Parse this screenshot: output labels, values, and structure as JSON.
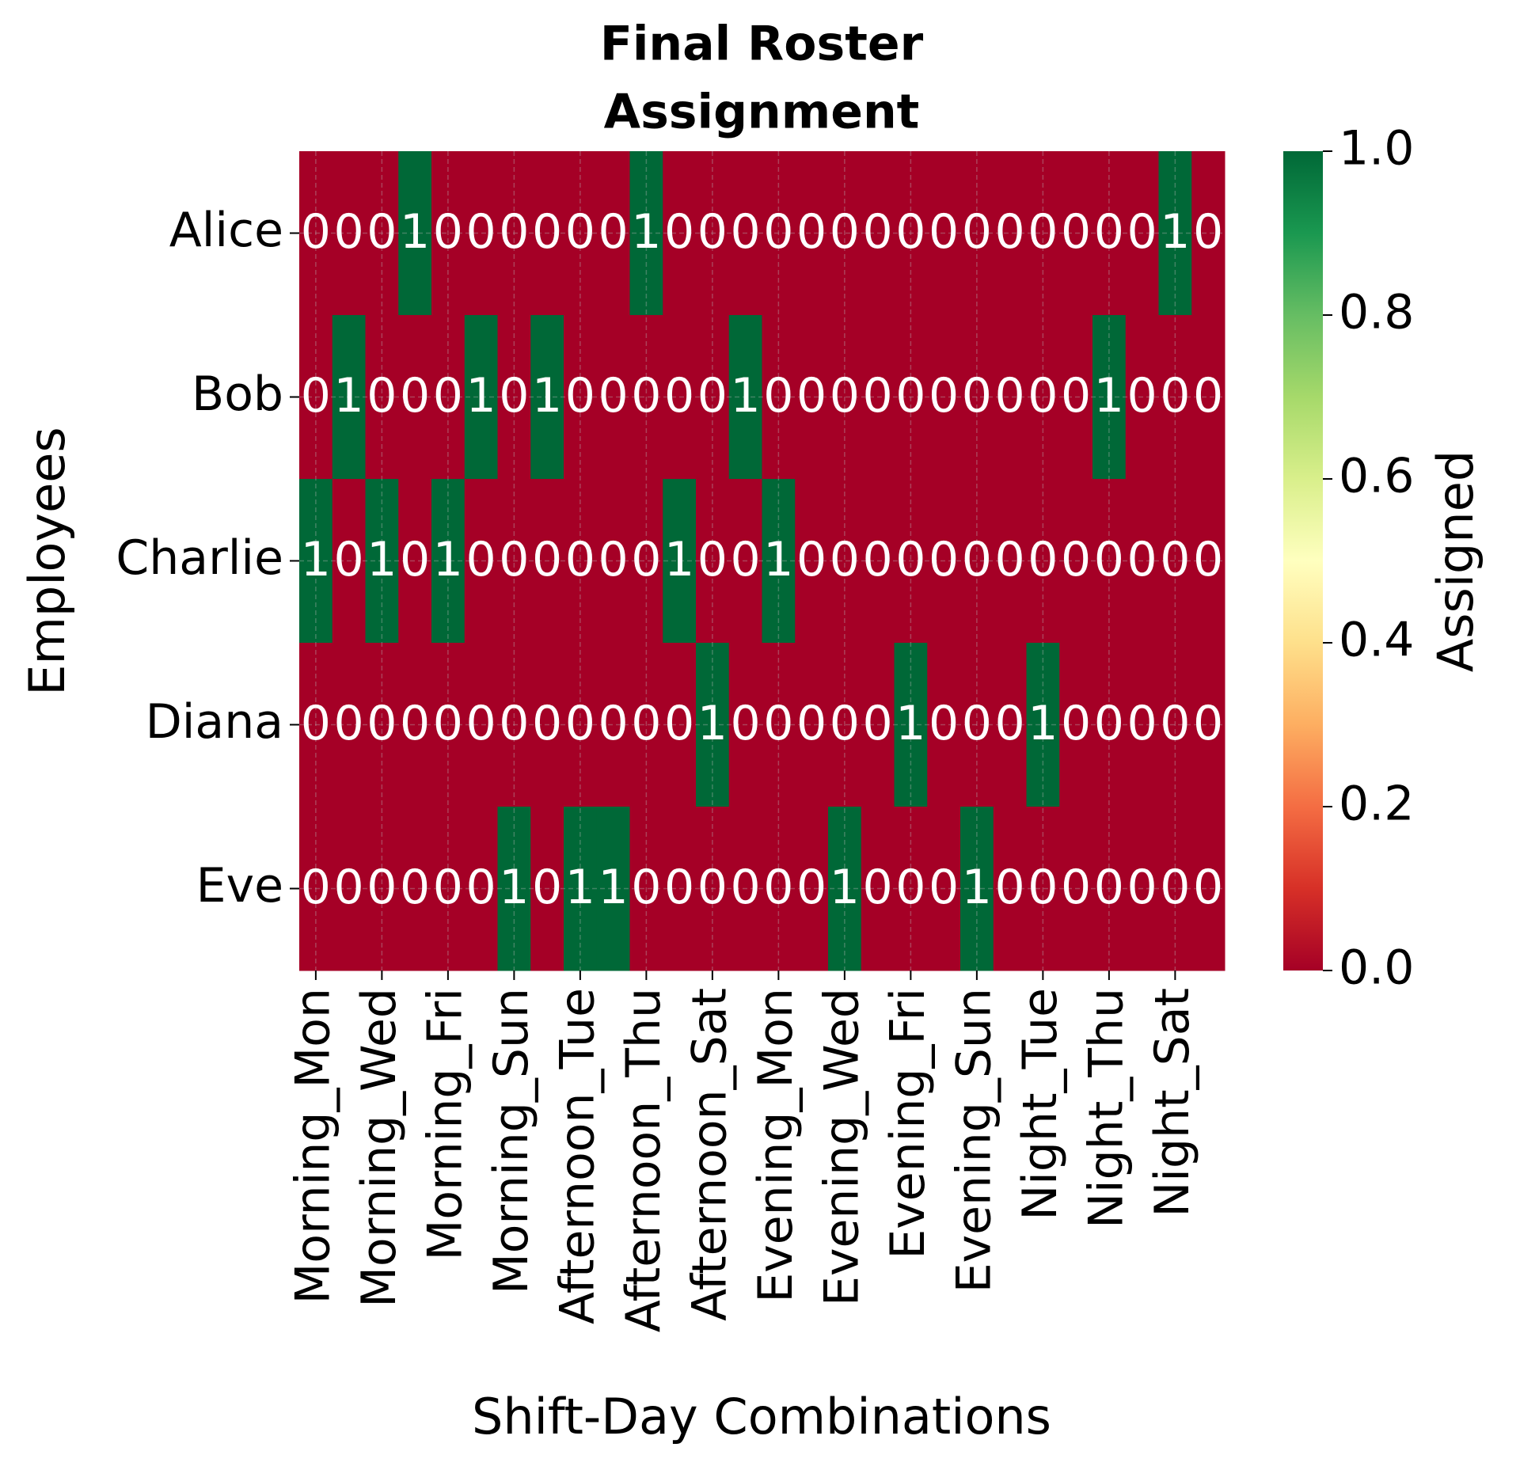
{
  "chart_data": {
    "type": "heatmap",
    "title": [
      "Final Roster",
      "Assignment"
    ],
    "x_label": "Shift-Day Combinations",
    "y_label": "Employees",
    "x": [
      "Morning_Mon",
      null,
      "Morning_Wed",
      null,
      "Morning_Fri",
      null,
      "Morning_Sun",
      null,
      "Afternoon_Tue",
      null,
      "Afternoon_Thu",
      null,
      "Afternoon_Sat",
      null,
      "Evening_Mon",
      null,
      "Evening_Wed",
      null,
      "Evening_Fri",
      null,
      "Evening_Sun",
      null,
      "Night_Tue",
      null,
      "Night_Thu",
      null,
      "Night_Sat",
      null
    ],
    "y": [
      "Alice",
      "Bob",
      "Charlie",
      "Diana",
      "Eve"
    ],
    "values": [
      [
        0,
        0,
        0,
        1,
        0,
        0,
        0,
        0,
        0,
        0,
        1,
        0,
        0,
        0,
        0,
        0,
        0,
        0,
        0,
        0,
        0,
        0,
        0,
        0,
        0,
        0,
        1,
        0
      ],
      [
        0,
        1,
        0,
        0,
        0,
        1,
        0,
        1,
        0,
        0,
        0,
        0,
        0,
        1,
        0,
        0,
        0,
        0,
        0,
        0,
        0,
        0,
        0,
        0,
        1,
        0,
        0,
        0
      ],
      [
        1,
        0,
        1,
        0,
        1,
        0,
        0,
        0,
        0,
        0,
        0,
        1,
        0,
        0,
        1,
        0,
        0,
        0,
        0,
        0,
        0,
        0,
        0,
        0,
        0,
        0,
        0,
        0
      ],
      [
        0,
        0,
        0,
        0,
        0,
        0,
        0,
        0,
        0,
        0,
        0,
        0,
        1,
        0,
        0,
        0,
        0,
        0,
        1,
        0,
        0,
        0,
        1,
        0,
        0,
        0,
        0,
        0
      ],
      [
        0,
        0,
        0,
        0,
        0,
        0,
        1,
        0,
        1,
        1,
        0,
        0,
        0,
        0,
        0,
        0,
        1,
        0,
        0,
        0,
        1,
        0,
        0,
        0,
        0,
        0,
        0,
        0
      ]
    ],
    "colormap": [
      "#a50026",
      "#d73027",
      "#f46d43",
      "#fdae61",
      "#fee08b",
      "#ffffbf",
      "#d9ef8b",
      "#a6d96a",
      "#66bd63",
      "#1a9850",
      "#006837"
    ],
    "colorbar_label": "Assigned",
    "clim": [
      0,
      1
    ],
    "cticks": [
      {
        "value": 0,
        "label": "0.0"
      },
      {
        "value": 0.2,
        "label": "0.2"
      },
      {
        "value": 0.4,
        "label": "0.4"
      },
      {
        "value": 0.6,
        "label": "0.6"
      },
      {
        "value": 0.8,
        "label": "0.8"
      },
      {
        "value": 1,
        "label": "1.0"
      }
    ],
    "grid": true,
    "annotation_color": "#ffffff"
  }
}
